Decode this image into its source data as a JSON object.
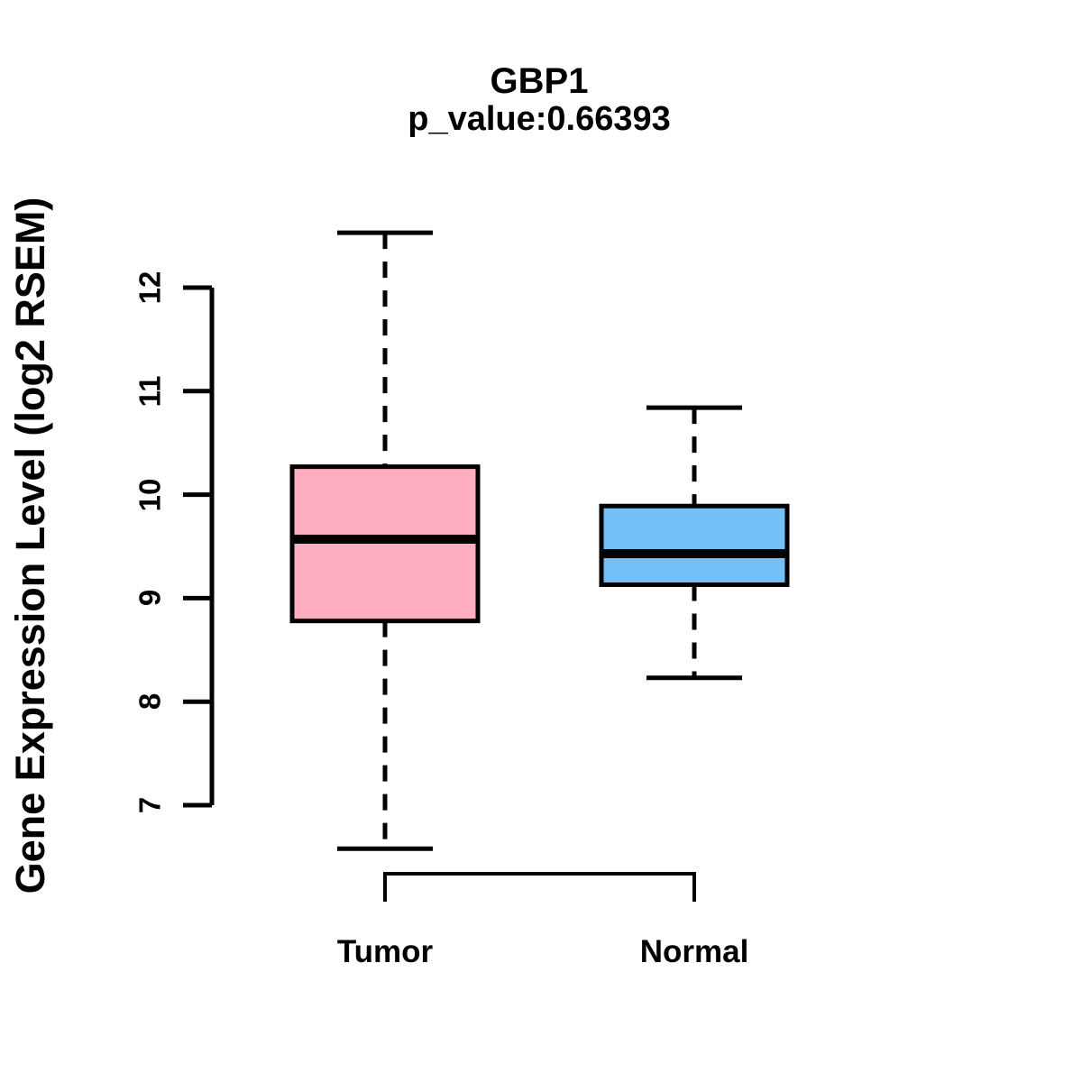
{
  "chart_data": {
    "type": "boxplot",
    "title": "GBP1",
    "subtitle": "p_value:0.66393",
    "ylabel": "Gene Expression Level (log2 RSEM)",
    "xlabel": "",
    "yticks": [
      7,
      8,
      9,
      10,
      11,
      12
    ],
    "ylim": [
      6.4,
      12.7
    ],
    "grid": false,
    "legend": "none",
    "categories": [
      "Tumor",
      "Normal"
    ],
    "series": [
      {
        "name": "Tumor",
        "color": "#FFAEC1",
        "lower_whisker": 6.58,
        "q1": 8.78,
        "median": 9.57,
        "q3": 10.27,
        "upper_whisker": 12.53
      },
      {
        "name": "Normal",
        "color": "#74BFF5",
        "lower_whisker": 8.23,
        "q1": 9.13,
        "median": 9.43,
        "q3": 9.89,
        "upper_whisker": 10.84
      }
    ],
    "line_color": "#000000",
    "background_color": "#FFFFFF"
  }
}
